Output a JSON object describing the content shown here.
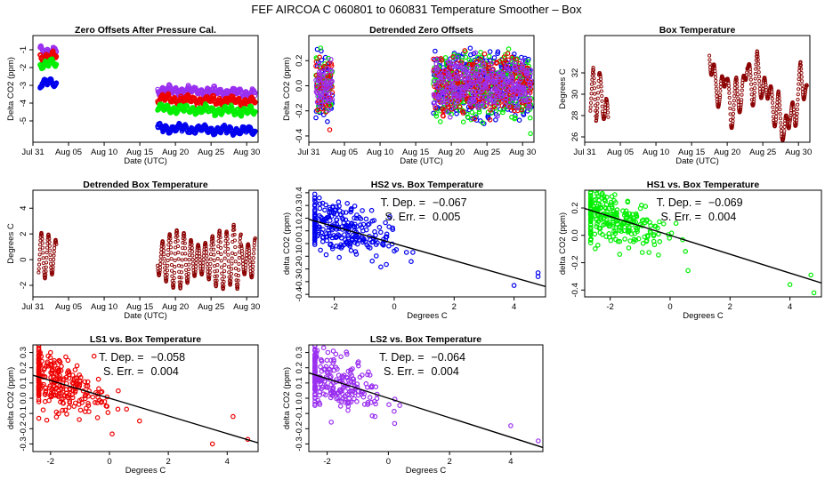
{
  "figure_title": "FEF   AIRCOA C   060801 to 060831   Temperature Smoother – Box",
  "colors": {
    "HS2": "#0000ee",
    "HS1": "#00ee00",
    "LS1": "#ee0000",
    "LS2": "#9a30f0",
    "box": "#8b0000",
    "fit": "#000000"
  },
  "chart_data": [
    {
      "id": "zero-offsets",
      "type": "scatter",
      "title": "Zero Offsets After Pressure Cal.",
      "xlabel": "Date (UTC)",
      "ylabel": "Delta CO2 (ppm)",
      "xlim": [
        0,
        31.6
      ],
      "ylim": [
        -6.2,
        -0.2
      ],
      "xticks": [
        0,
        5,
        10,
        15,
        20,
        25,
        30
      ],
      "xticklabels": [
        "Jul 31",
        "Aug 05",
        "Aug 10",
        "Aug 15",
        "Aug 20",
        "Aug 25",
        "Aug 30"
      ],
      "yticks": [
        -5,
        -4,
        -3,
        -2,
        -1
      ],
      "yticklabels": [
        "-5",
        "-4",
        "-3",
        "-2",
        "-1"
      ],
      "series": [
        {
          "name": "LS2",
          "color": "#9a30f0",
          "segments": [
            {
              "x": [
                1.0,
                3.3
              ],
              "level": -1.05,
              "amp": 0.35
            },
            {
              "x": [
                17.5,
                31.2
              ],
              "level": -3.25,
              "amp": 0.3
            }
          ]
        },
        {
          "name": "LS1",
          "color": "#ee0000",
          "segments": [
            {
              "x": [
                1.0,
                3.3
              ],
              "level": -1.4,
              "amp": 0.3
            },
            {
              "x": [
                17.5,
                31.2
              ],
              "level": -3.75,
              "amp": 0.3
            }
          ]
        },
        {
          "name": "HS1",
          "color": "#00ee00",
          "segments": [
            {
              "x": [
                1.0,
                3.3
              ],
              "level": -1.8,
              "amp": 0.3
            },
            {
              "x": [
                17.5,
                31.2
              ],
              "level": -4.3,
              "amp": 0.3
            }
          ]
        },
        {
          "name": "HS2",
          "color": "#0000ee",
          "segments": [
            {
              "x": [
                1.0,
                3.3
              ],
              "level": -2.9,
              "amp": 0.3
            },
            {
              "x": [
                17.5,
                31.2
              ],
              "level": -5.4,
              "amp": 0.3
            }
          ]
        }
      ]
    },
    {
      "id": "detrended-zero-offsets",
      "type": "scatter",
      "title": "Detrended Zero Offsets",
      "xlabel": "Date (UTC)",
      "ylabel": "Delta CO2 (ppm)",
      "xlim": [
        0,
        31.6
      ],
      "ylim": [
        -0.45,
        0.4
      ],
      "xticks": [
        0,
        5,
        10,
        15,
        20,
        25,
        30
      ],
      "xticklabels": [
        "Jul 31",
        "Aug 05",
        "Aug 10",
        "Aug 15",
        "Aug 20",
        "Aug 25",
        "Aug 30"
      ],
      "yticks": [
        -0.4,
        -0.2,
        0.0,
        0.2
      ],
      "yticklabels": [
        "-0.4",
        "-0.2",
        "0.0",
        "0.2"
      ],
      "series": [
        {
          "name": "HS2",
          "color": "#0000ee",
          "segments": [
            {
              "x": [
                1.0,
                3.3
              ],
              "level": 0.0,
              "amp": 0.2
            },
            {
              "x": [
                17.5,
                31.2
              ],
              "level": 0.0,
              "amp": 0.22
            }
          ]
        },
        {
          "name": "HS1",
          "color": "#00ee00",
          "segments": [
            {
              "x": [
                1.0,
                3.3
              ],
              "level": 0.0,
              "amp": 0.2
            },
            {
              "x": [
                17.5,
                31.2
              ],
              "level": 0.0,
              "amp": 0.22
            }
          ]
        },
        {
          "name": "LS1",
          "color": "#ee0000",
          "segments": [
            {
              "x": [
                1.0,
                3.3
              ],
              "level": 0.0,
              "amp": 0.17
            },
            {
              "x": [
                17.5,
                31.2
              ],
              "level": 0.0,
              "amp": 0.18
            }
          ]
        },
        {
          "name": "LS2",
          "color": "#9a30f0",
          "segments": [
            {
              "x": [
                1.0,
                3.3
              ],
              "level": 0.0,
              "amp": 0.16
            },
            {
              "x": [
                17.5,
                31.2
              ],
              "level": 0.0,
              "amp": 0.16
            }
          ]
        }
      ]
    },
    {
      "id": "box-temperature",
      "type": "line",
      "title": "Box Temperature",
      "xlabel": "Date (UTC)",
      "ylabel": "Degrees C",
      "xlim": [
        0,
        31.6
      ],
      "ylim": [
        25.5,
        35.5
      ],
      "xticks": [
        0,
        5,
        10,
        15,
        20,
        25,
        30
      ],
      "xticklabels": [
        "Jul 31",
        "Aug 05",
        "Aug 10",
        "Aug 15",
        "Aug 20",
        "Aug 25",
        "Aug 30"
      ],
      "yticks": [
        26,
        28,
        30,
        32
      ],
      "yticklabels": [
        "26",
        "28",
        "30",
        "32"
      ],
      "series": [
        {
          "name": "Box",
          "color": "#8b0000",
          "segments": [
            {
              "x": [
                0.8,
                3.3
              ],
              "points": [
                [
                  0.8,
                  29.5
                ],
                [
                  1.2,
                  31.2
                ],
                [
                  1.6,
                  28.5
                ],
                [
                  2.0,
                  31.5
                ],
                [
                  2.5,
                  28.8
                ],
                [
                  3.0,
                  29.2
                ],
                [
                  3.3,
                  26.8
                ]
              ]
            },
            {
              "x": [
                17.5,
                31.2
              ],
              "points": [
                [
                  17.5,
                  34.0
                ],
                [
                  18.3,
                  31.0
                ],
                [
                  19.0,
                  29.5
                ],
                [
                  19.8,
                  32.5
                ],
                [
                  20.5,
                  27.5
                ],
                [
                  21.3,
                  30.5
                ],
                [
                  22.0,
                  29.0
                ],
                [
                  22.8,
                  33.5
                ],
                [
                  23.5,
                  29.5
                ],
                [
                  24.2,
                  32.8
                ],
                [
                  25.0,
                  30.0
                ],
                [
                  25.8,
                  31.0
                ],
                [
                  26.5,
                  28.0
                ],
                [
                  27.2,
                  29.0
                ],
                [
                  28.0,
                  26.0
                ],
                [
                  28.8,
                  28.5
                ],
                [
                  29.5,
                  27.5
                ],
                [
                  30.3,
                  32.0
                ],
                [
                  31.2,
                  29.5
                ]
              ]
            }
          ]
        }
      ]
    },
    {
      "id": "detrended-box-temperature",
      "type": "line",
      "title": "Detrended Box Temperature",
      "xlabel": "Date (UTC)",
      "ylabel": "Degrees C",
      "xlim": [
        0,
        31.6
      ],
      "ylim": [
        -2.9,
        5.4
      ],
      "xticks": [
        0,
        5,
        10,
        15,
        20,
        25,
        30
      ],
      "xticklabels": [
        "Jul 31",
        "Aug 05",
        "Aug 10",
        "Aug 15",
        "Aug 20",
        "Aug 25",
        "Aug 30"
      ],
      "yticks": [
        -2,
        0,
        2,
        4
      ],
      "yticklabels": [
        "-2",
        "0",
        "2",
        "4"
      ],
      "series": [
        {
          "name": "Box",
          "color": "#8b0000",
          "segments": [
            {
              "x": [
                0.8,
                3.3
              ],
              "level": 0.3,
              "amp": 1.8
            },
            {
              "x": [
                17.5,
                31.2
              ],
              "level": 0.0,
              "amp": 2.3
            }
          ]
        }
      ]
    },
    {
      "id": "hs2-vs-box",
      "type": "scatter",
      "title": "HS2 vs. Box Temperature",
      "xlabel": "Degrees C",
      "ylabel": "delta CO2 (ppm)",
      "xlim": [
        -2.85,
        5.05
      ],
      "ylim": [
        -0.42,
        0.42
      ],
      "xticks": [
        -2,
        0,
        2,
        4
      ],
      "xticklabels": [
        "-2",
        "0",
        "2",
        "4"
      ],
      "yticks": [
        -0.4,
        -0.3,
        -0.2,
        -0.1,
        0.0,
        0.1,
        0.2,
        0.3,
        0.4
      ],
      "yticklabels": [
        "-0.4",
        "-0.3",
        "-0.2",
        "-0.1",
        "0.0",
        "0.1",
        "0.2",
        "0.3",
        "0.4"
      ],
      "color": "#0000ee",
      "slope": -0.067,
      "intercept": 0.0,
      "scatter_sd": 0.1,
      "n_points": 280,
      "annotation": {
        "dep_label": "T. Dep. =",
        "dep_value": "−0.067",
        "err_label": "S. Err. =",
        "err_value": "0.005"
      },
      "extra_points": [
        [
          4.8,
          -0.23
        ],
        [
          4.8,
          -0.26
        ],
        [
          4.0,
          -0.33
        ],
        [
          -2.5,
          0.36
        ]
      ]
    },
    {
      "id": "hs1-vs-box",
      "type": "scatter",
      "title": "HS1 vs. Box Temperature",
      "xlabel": "Degrees C",
      "ylabel": "delta CO2 (ppm)",
      "xlim": [
        -2.85,
        5.05
      ],
      "ylim": [
        -0.45,
        0.33
      ],
      "xticks": [
        -2,
        0,
        2,
        4
      ],
      "xticklabels": [
        "-2",
        "0",
        "2",
        "4"
      ],
      "yticks": [
        -0.4,
        -0.2,
        0.0,
        0.2
      ],
      "yticklabels": [
        "-0.4",
        "-0.2",
        "0.0",
        "0.2"
      ],
      "color": "#00ee00",
      "slope": -0.069,
      "intercept": 0.0,
      "scatter_sd": 0.1,
      "n_points": 280,
      "annotation": {
        "dep_label": "T. Dep. =",
        "dep_value": "−0.069",
        "err_label": "S. Err. =",
        "err_value": "0.004"
      },
      "extra_points": [
        [
          4.8,
          -0.42
        ],
        [
          4.7,
          -0.29
        ],
        [
          4.0,
          -0.36
        ]
      ]
    },
    {
      "id": "ls1-vs-box",
      "type": "scatter",
      "title": "LS1 vs. Box Temperature",
      "xlabel": "Degrees C",
      "ylabel": "delta CO2 (ppm)",
      "xlim": [
        -2.6,
        5.05
      ],
      "ylim": [
        -0.35,
        0.35
      ],
      "xticks": [
        -2,
        0,
        2,
        4
      ],
      "xticklabels": [
        "-2",
        "0",
        "2",
        "4"
      ],
      "yticks": [
        -0.3,
        -0.2,
        -0.1,
        0.0,
        0.1,
        0.2,
        0.3
      ],
      "yticklabels": [
        "-0.3",
        "-0.2",
        "-0.1",
        "0.0",
        "0.1",
        "0.2",
        "0.3"
      ],
      "color": "#ee0000",
      "slope": -0.058,
      "intercept": 0.0,
      "scatter_sd": 0.09,
      "n_points": 280,
      "annotation": {
        "dep_label": "T. Dep. =",
        "dep_value": "−0.058",
        "err_label": "S. Err. =",
        "err_value": "0.004"
      },
      "extra_points": [
        [
          4.7,
          -0.27
        ],
        [
          4.2,
          -0.12
        ],
        [
          3.5,
          -0.3
        ],
        [
          -2.0,
          0.3
        ]
      ]
    },
    {
      "id": "ls2-vs-box",
      "type": "scatter",
      "title": "LS2 vs. Box Temperature",
      "xlabel": "Degrees C",
      "ylabel": "delta CO2 (ppm)",
      "xlim": [
        -2.6,
        5.05
      ],
      "ylim": [
        -0.35,
        0.35
      ],
      "xticks": [
        -2,
        0,
        2,
        4
      ],
      "xticklabels": [
        "-2",
        "0",
        "2",
        "4"
      ],
      "yticks": [
        -0.3,
        -0.2,
        -0.1,
        0.0,
        0.1,
        0.2,
        0.3
      ],
      "yticklabels": [
        "-0.3",
        "-0.2",
        "-0.1",
        "0.0",
        "0.1",
        "0.2",
        "0.3"
      ],
      "color": "#9a30f0",
      "slope": -0.064,
      "intercept": 0.0,
      "scatter_sd": 0.09,
      "n_points": 280,
      "annotation": {
        "dep_label": "T. Dep. =",
        "dep_value": "−0.064",
        "err_label": "S. Err. =",
        "err_value": "0.004"
      },
      "extra_points": [
        [
          4.9,
          -0.28
        ],
        [
          4.0,
          -0.18
        ],
        [
          -1.8,
          0.31
        ]
      ]
    }
  ]
}
